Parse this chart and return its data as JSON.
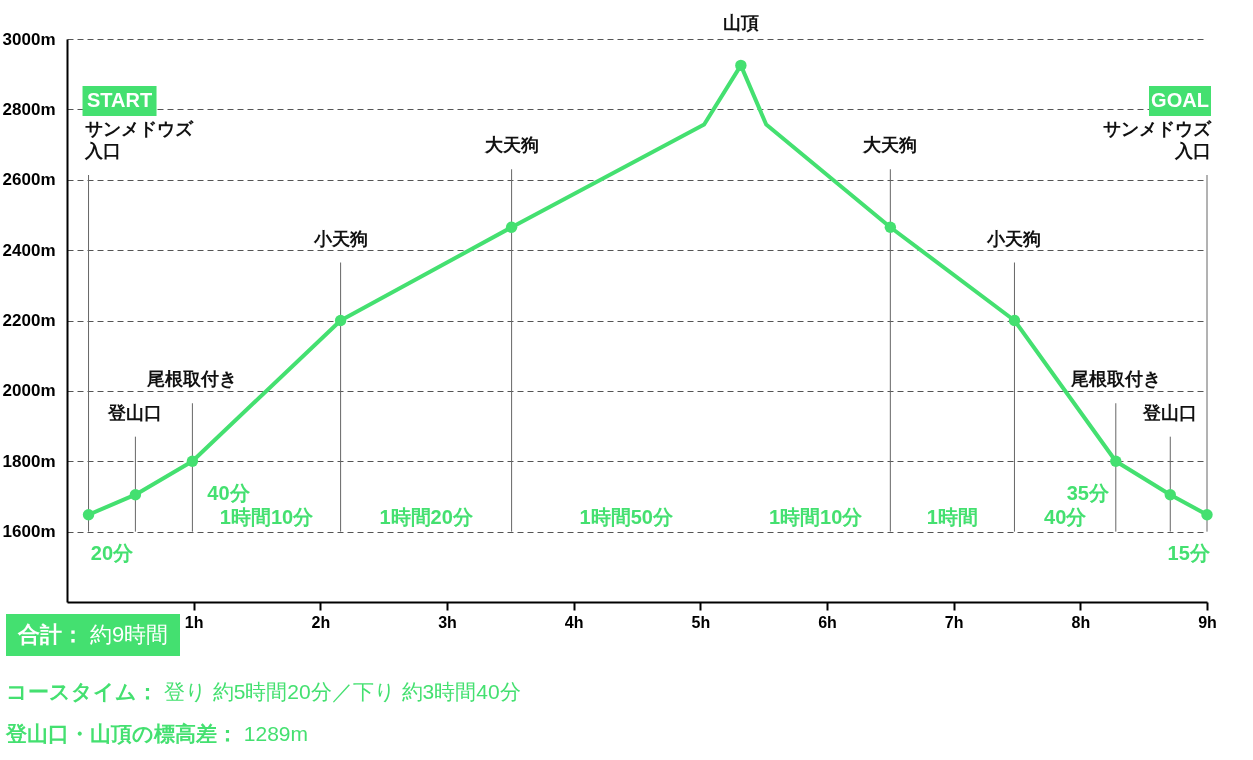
{
  "chart_data": {
    "type": "line",
    "xlim": [
      0,
      9
    ],
    "ylim": [
      1400,
      3000
    ],
    "xticks": [
      {
        "value": 1,
        "label": "1h"
      },
      {
        "value": 2,
        "label": "2h"
      },
      {
        "value": 3,
        "label": "3h"
      },
      {
        "value": 4,
        "label": "4h"
      },
      {
        "value": 5,
        "label": "5h"
      },
      {
        "value": 6,
        "label": "6h"
      },
      {
        "value": 7,
        "label": "7h"
      },
      {
        "value": 8,
        "label": "8h"
      },
      {
        "value": 9,
        "label": "9h"
      }
    ],
    "yticks": [
      {
        "value": 1600,
        "label": "1600m"
      },
      {
        "value": 1800,
        "label": "1800m"
      },
      {
        "value": 2000,
        "label": "2000m"
      },
      {
        "value": 2200,
        "label": "2200m"
      },
      {
        "value": 2400,
        "label": "2400m"
      },
      {
        "value": 2600,
        "label": "2600m"
      },
      {
        "value": 2800,
        "label": "2800m"
      },
      {
        "value": 3000,
        "label": "3000m"
      }
    ],
    "grid": "y",
    "series": [
      {
        "marker": "none",
        "color": "#44e070",
        "x": [
          0.17,
          0.54,
          0.99,
          2.16,
          3.51,
          5.03,
          5.32,
          5.52,
          6.5,
          7.48,
          8.28,
          8.71,
          9.0
        ],
        "values": [
          1648,
          1705,
          1800,
          2200,
          2465,
          2757,
          2925,
          2757,
          2465,
          2200,
          1800,
          1705,
          1648
        ]
      },
      {
        "type": "scatter",
        "marker": "circle",
        "color": "#44e070",
        "x": [
          0.17,
          0.54,
          0.99,
          2.16,
          3.51,
          5.32,
          6.5,
          7.48,
          8.28,
          8.71,
          9.0
        ],
        "values": [
          1648,
          1705,
          1800,
          2200,
          2465,
          2925,
          2465,
          2200,
          1800,
          1705,
          1648
        ]
      }
    ],
    "annotations": [
      "START",
      "GOAL",
      "20分",
      "40分",
      "1時間10分",
      "1時間20分",
      "1時間50分",
      "1時間10分",
      "1時間",
      "40分",
      "35分",
      "15分",
      "サンメドウズ入口",
      "登山口",
      "尾根取付き",
      "小天狗",
      "大天狗",
      "山頂",
      "大天狗",
      "小天狗",
      "尾根取付き",
      "登山口",
      "サンメドウズ入口",
      "合計：約9時間",
      "コースタイム：登り 約5時間20分／下り 約3時間40分",
      "登山口・山頂の標高差：1289m"
    ]
  }
}
